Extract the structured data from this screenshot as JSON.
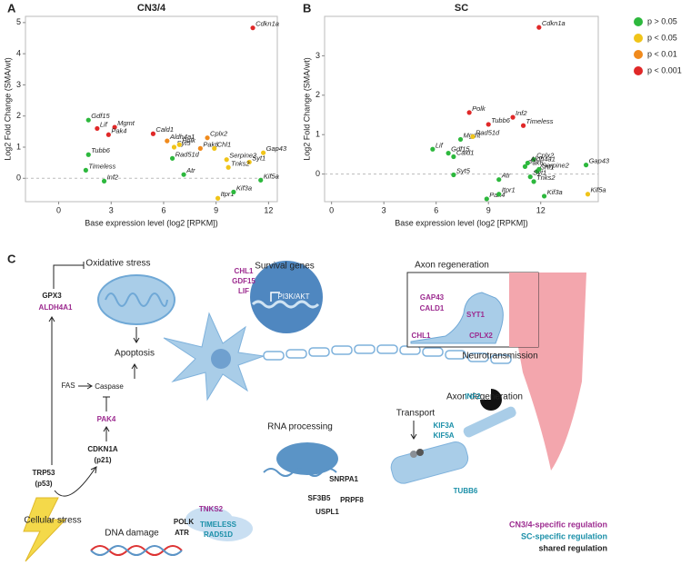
{
  "chart_data": [
    {
      "type": "scatter",
      "panel": "A",
      "title": "CN3/4",
      "x_label": "Base expression level (log2 [RPKM])",
      "y_label": "Log2 Fold Change (SMA/wt)",
      "xlim": [
        -1.9,
        12.5
      ],
      "ylim": [
        -0.75,
        5.2
      ],
      "xticks": [
        0,
        3,
        6,
        9,
        12
      ],
      "yticks": [
        0,
        1,
        2,
        3,
        4,
        5
      ],
      "zero_line": true,
      "points": {
        "labels": [
          "Cdkn1a",
          "Gdf15",
          "Mgmt",
          "Lif",
          "Pak4",
          "Cald1",
          "Aldh4a1",
          "Syt5",
          "Polk",
          "Cplx2",
          "Pak6",
          "Chl1",
          "Gap43",
          "Serpine2",
          "Syt1",
          "Tnks2",
          "Tubb6",
          "Rad51d",
          "Timeless",
          "Atr",
          "Inf2",
          "Itpr1",
          "Kif3a",
          "Kif5a"
        ],
        "x": [
          11.1,
          1.7,
          3.2,
          2.2,
          2.85,
          5.4,
          6.2,
          6.6,
          6.9,
          8.5,
          8.1,
          8.9,
          11.7,
          9.6,
          10.9,
          9.7,
          1.7,
          6.5,
          1.55,
          7.15,
          2.6,
          9.1,
          10,
          11.55
        ],
        "y": [
          4.83,
          1.87,
          1.64,
          1.6,
          1.4,
          1.43,
          1.2,
          1.0,
          1.08,
          1.3,
          0.96,
          0.96,
          0.82,
          0.6,
          0.52,
          0.35,
          0.76,
          0.64,
          0.26,
          0.12,
          -0.09,
          -0.64,
          -0.44,
          -0.06
        ],
        "level": [
          3,
          0,
          3,
          3,
          3,
          3,
          2,
          1,
          1,
          2,
          2,
          1,
          1,
          1,
          1,
          1,
          0,
          0,
          0,
          0,
          0,
          1,
          0,
          0
        ]
      }
    },
    {
      "type": "scatter",
      "panel": "B",
      "title": "SC",
      "x_label": "Base expression level (log2 [RPKM])",
      "y_label": "Log2 Fold Change (SMA/wt)",
      "xlim": [
        -0.4,
        15.3
      ],
      "ylim": [
        -0.7,
        4.0
      ],
      "xticks": [
        0,
        3,
        6,
        9,
        12
      ],
      "yticks": [
        0,
        1,
        2,
        3
      ],
      "zero_line": true,
      "points": {
        "labels": [
          "Cdkn1a",
          "Polk",
          "Inf2",
          "Tubb6",
          "Timeless",
          "Mgmt",
          "Rad51d",
          "Lif",
          "Gdf15",
          "Cald1",
          "Syt5",
          "Cplx2",
          "Pak6",
          "Aldh4a1",
          "Chl1",
          "Serpine2",
          "Syt1",
          "Tnks2",
          "Atr",
          "Gap43",
          "Kif5a",
          "Kif3a",
          "Pak4",
          "Itpr1"
        ],
        "x": [
          11.9,
          7.9,
          10.4,
          9.0,
          11.0,
          7.4,
          8.1,
          5.8,
          6.7,
          7.0,
          7.0,
          11.6,
          11.1,
          11.25,
          11.8,
          11.9,
          11.4,
          11.6,
          9.6,
          14.6,
          14.7,
          12.2,
          8.9,
          9.6
        ],
        "y": [
          3.72,
          1.56,
          1.44,
          1.26,
          1.23,
          0.88,
          0.95,
          0.63,
          0.53,
          0.44,
          -0.02,
          0.37,
          0.19,
          0.28,
          0.07,
          0.12,
          -0.07,
          -0.19,
          -0.14,
          0.23,
          -0.51,
          -0.56,
          -0.63,
          -0.51
        ],
        "level": [
          3,
          3,
          3,
          3,
          3,
          0,
          1,
          0,
          0,
          0,
          0,
          0,
          0,
          0,
          0,
          0,
          0,
          0,
          0,
          0,
          1,
          0,
          0,
          0
        ]
      }
    }
  ],
  "legend": [
    {
      "name": "p > 0.05",
      "color": "#2db83d"
    },
    {
      "name": "p < 0.05",
      "color": "#f0c419"
    },
    {
      "name": "p < 0.01",
      "color": "#f08a1c"
    },
    {
      "name": "p < 0.001",
      "color": "#e02828"
    }
  ],
  "diagram": {
    "label": "C",
    "headings": [
      "Oxidative stress",
      "Survival genes",
      "Axon regeneration",
      "Apoptosis",
      "Neurotransmission",
      "Axon degeneration",
      "RNA processing",
      "Transport",
      "Cellular stress",
      "DNA damage",
      "PI3K/AKT",
      "Caspase",
      "FAS"
    ],
    "regulation_legend": [
      {
        "name": "CN3/4-specific regulation",
        "color": "#9c2a8f"
      },
      {
        "name": "SC-specific regulation",
        "color": "#1a8fa8"
      },
      {
        "name": "shared regulation",
        "color": "#222222"
      }
    ],
    "genes": [
      {
        "text": "GPX3",
        "group": 2
      },
      {
        "text": "ALDH4A1",
        "group": 0
      },
      {
        "text": "CHL1",
        "group": 0
      },
      {
        "text": "GDF15",
        "group": 0
      },
      {
        "text": "LIF",
        "group": 0
      },
      {
        "text": "GAP43",
        "group": 0
      },
      {
        "text": "CALD1",
        "group": 0
      },
      {
        "text": "CHL1",
        "group": 0
      },
      {
        "text": "SYT1",
        "group": 0
      },
      {
        "text": "CPLX2",
        "group": 0
      },
      {
        "text": "PAK4",
        "group": 0
      },
      {
        "text": "CDKN1A",
        "group": 2
      },
      {
        "text": "(p21)",
        "group": 2
      },
      {
        "text": "TRP53",
        "group": 2
      },
      {
        "text": "(p53)",
        "group": 2
      },
      {
        "text": "SNRPA1",
        "group": 2
      },
      {
        "text": "SF3B5",
        "group": 2
      },
      {
        "text": "PRPF8",
        "group": 2
      },
      {
        "text": "USPL1",
        "group": 2
      },
      {
        "text": "KIF3A",
        "group": 1
      },
      {
        "text": "KIF5A",
        "group": 1
      },
      {
        "text": "INF2",
        "group": 1
      },
      {
        "text": "TUBB6",
        "group": 1
      },
      {
        "text": "TNKS2",
        "group": 0
      },
      {
        "text": "POLK",
        "group": 2
      },
      {
        "text": "ATR",
        "group": 2
      },
      {
        "text": "TIMELESS",
        "group": 1
      },
      {
        "text": "RAD51D",
        "group": 1
      }
    ]
  }
}
